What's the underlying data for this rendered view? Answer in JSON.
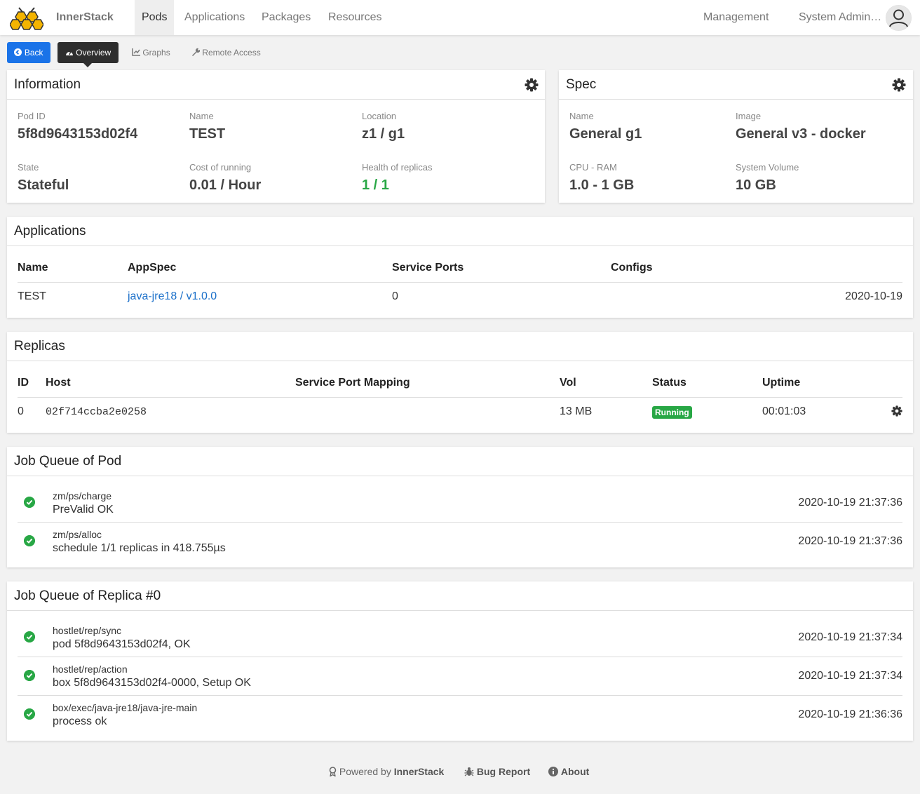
{
  "navbar": {
    "brand": "InnerStack",
    "items": [
      "Pods",
      "Applications",
      "Packages",
      "Resources"
    ],
    "management": "Management",
    "user": "System Admin…"
  },
  "tabs": {
    "back": "Back",
    "overview": "Overview",
    "graphs": "Graphs",
    "remote": "Remote Access"
  },
  "information": {
    "title": "Information",
    "pod_id_label": "Pod ID",
    "pod_id": "5f8d9643153d02f4",
    "name_label": "Name",
    "name": "TEST",
    "location_label": "Location",
    "location": "z1 / g1",
    "state_label": "State",
    "state": "Stateful",
    "cost_label": "Cost of running",
    "cost": "0.01 / Hour",
    "health_label": "Health of replicas",
    "health": "1 / 1"
  },
  "spec": {
    "title": "Spec",
    "name_label": "Name",
    "name": "General g1",
    "image_label": "Image",
    "image": "General v3 - docker",
    "cpu_label": "CPU - RAM",
    "cpu": "1.0 - 1 GB",
    "volume_label": "System Volume",
    "volume": "10 GB"
  },
  "applications": {
    "title": "Applications",
    "headers": [
      "Name",
      "AppSpec",
      "Service Ports",
      "Configs"
    ],
    "row": {
      "name": "TEST",
      "appspec": "java-jre18 / v1.0.0",
      "ports": "0",
      "date": "2020-10-19"
    }
  },
  "replicas": {
    "title": "Replicas",
    "headers": [
      "ID",
      "Host",
      "Service Port Mapping",
      "Vol",
      "Status",
      "Uptime"
    ],
    "row": {
      "id": "0",
      "host": "02f714ccba2e0258",
      "vol": "13 MB",
      "status": "Running",
      "uptime": "00:01:03"
    }
  },
  "pod_jobs": {
    "title": "Job Queue of Pod",
    "items": [
      {
        "name": "zm/ps/charge",
        "msg": "PreValid OK",
        "time": "2020-10-19 21:37:36"
      },
      {
        "name": "zm/ps/alloc",
        "msg": "schedule 1/1 replicas in 418.755µs",
        "time": "2020-10-19 21:37:36"
      }
    ]
  },
  "replica_jobs": {
    "title": "Job Queue of Replica #0",
    "items": [
      {
        "name": "hostlet/rep/sync",
        "msg": "pod 5f8d9643153d02f4, OK",
        "time": "2020-10-19 21:37:34"
      },
      {
        "name": "hostlet/rep/action",
        "msg": "box 5f8d9643153d02f4-0000, Setup OK",
        "time": "2020-10-19 21:37:34"
      },
      {
        "name": "box/exec/java-jre18/java-jre-main",
        "msg": "process ok",
        "time": "2020-10-19 21:36:36"
      }
    ]
  },
  "footer": {
    "powered_prefix": "Powered by",
    "powered_brand": "InnerStack",
    "bug": "Bug Report",
    "about": "About"
  }
}
